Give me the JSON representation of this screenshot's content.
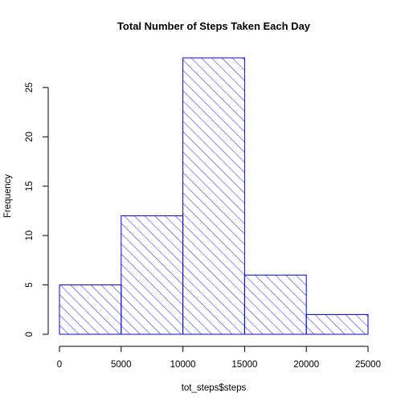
{
  "chart_data": {
    "type": "bar",
    "title": "Total Number of Steps Taken Each Day",
    "xlabel": "tot_steps$steps",
    "ylabel": "Frequency",
    "bins": [
      {
        "from": 0,
        "to": 5000,
        "count": 5
      },
      {
        "from": 5000,
        "to": 10000,
        "count": 12
      },
      {
        "from": 10000,
        "to": 15000,
        "count": 28
      },
      {
        "from": 15000,
        "to": 20000,
        "count": 6
      },
      {
        "from": 20000,
        "to": 25000,
        "count": 2
      }
    ],
    "xlim": [
      0,
      25000
    ],
    "ylim": [
      0,
      28
    ],
    "x_ticks": [
      0,
      5000,
      10000,
      15000,
      20000,
      25000
    ],
    "y_ticks": [
      0,
      5,
      10,
      15,
      20,
      25
    ],
    "bar_color": "#0000ff",
    "fill_pattern": "diagonal-hatch",
    "grid": false,
    "legend": "none"
  }
}
